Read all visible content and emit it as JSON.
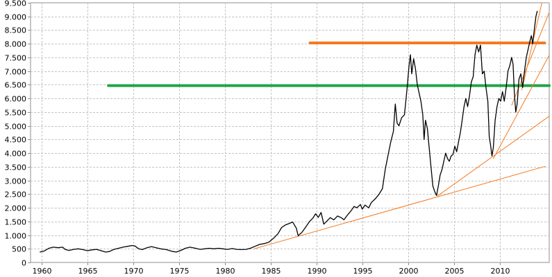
{
  "chart_data": {
    "type": "line",
    "title": "",
    "xlabel": "",
    "ylabel": "",
    "xlim": [
      1958.8,
      2015.4
    ],
    "ylim": [
      0,
      9500
    ],
    "x_ticks": [
      1960,
      1965,
      1970,
      1975,
      1980,
      1985,
      1990,
      1995,
      2000,
      2005,
      2010
    ],
    "x_tick_labels": [
      "1960",
      "1965",
      "1970",
      "1975",
      "1980",
      "1985",
      "1990",
      "1995",
      "2000",
      "2005",
      "2010"
    ],
    "y_ticks": [
      0,
      500,
      1000,
      1500,
      2000,
      2500,
      3000,
      3500,
      4000,
      4500,
      5000,
      5500,
      6000,
      6500,
      7000,
      7500,
      8000,
      8500,
      9000,
      9500
    ],
    "y_tick_labels": [
      "0",
      "500",
      "1.000",
      "1.500",
      "2.000",
      "2.500",
      "3.000",
      "3.500",
      "4.000",
      "4.500",
      "5.000",
      "5.500",
      "6.000",
      "6.500",
      "7.000",
      "7.500",
      "8.000",
      "8.500",
      "9.000",
      "9.500"
    ],
    "grid": true,
    "legend": "none",
    "colors": {
      "price": "#000000",
      "resistance_upper": "#f47a20",
      "resistance_lower": "#21a448",
      "trendlines": "#f47a20",
      "grid": "#c4c4c4",
      "frame": "#8e8e8e"
    },
    "series": [
      {
        "values": [
          [
            1959.8,
            380
          ],
          [
            1960.3,
            420
          ],
          [
            1960.8,
            520
          ],
          [
            1961.3,
            560
          ],
          [
            1961.8,
            540
          ],
          [
            1962.3,
            560
          ],
          [
            1962.6,
            470
          ],
          [
            1963.0,
            440
          ],
          [
            1963.5,
            480
          ],
          [
            1964.0,
            500
          ],
          [
            1964.5,
            470
          ],
          [
            1965.0,
            430
          ],
          [
            1965.5,
            460
          ],
          [
            1966.0,
            480
          ],
          [
            1966.5,
            430
          ],
          [
            1967.0,
            380
          ],
          [
            1967.4,
            400
          ],
          [
            1967.9,
            480
          ],
          [
            1968.4,
            520
          ],
          [
            1968.9,
            560
          ],
          [
            1969.4,
            590
          ],
          [
            1969.9,
            620
          ],
          [
            1970.2,
            600
          ],
          [
            1970.6,
            500
          ],
          [
            1971.0,
            470
          ],
          [
            1971.5,
            540
          ],
          [
            1972.0,
            580
          ],
          [
            1972.5,
            540
          ],
          [
            1973.0,
            500
          ],
          [
            1973.6,
            470
          ],
          [
            1974.2,
            410
          ],
          [
            1974.7,
            380
          ],
          [
            1975.2,
            440
          ],
          [
            1975.7,
            520
          ],
          [
            1976.2,
            560
          ],
          [
            1976.8,
            520
          ],
          [
            1977.3,
            480
          ],
          [
            1977.8,
            500
          ],
          [
            1978.3,
            520
          ],
          [
            1978.8,
            500
          ],
          [
            1979.3,
            520
          ],
          [
            1979.8,
            500
          ],
          [
            1980.3,
            480
          ],
          [
            1980.8,
            510
          ],
          [
            1981.3,
            480
          ],
          [
            1981.8,
            470
          ],
          [
            1982.3,
            480
          ],
          [
            1982.8,
            520
          ],
          [
            1983.3,
            590
          ],
          [
            1983.8,
            660
          ],
          [
            1984.3,
            690
          ],
          [
            1984.8,
            740
          ],
          [
            1985.3,
            880
          ],
          [
            1985.8,
            1050
          ],
          [
            1986.2,
            1280
          ],
          [
            1986.6,
            1370
          ],
          [
            1987.0,
            1420
          ],
          [
            1987.4,
            1480
          ],
          [
            1987.8,
            1260
          ],
          [
            1988.0,
            980
          ],
          [
            1988.4,
            1100
          ],
          [
            1988.8,
            1280
          ],
          [
            1989.2,
            1480
          ],
          [
            1989.6,
            1620
          ],
          [
            1989.9,
            1780
          ],
          [
            1990.2,
            1650
          ],
          [
            1990.5,
            1830
          ],
          [
            1990.8,
            1400
          ],
          [
            1991.1,
            1500
          ],
          [
            1991.5,
            1640
          ],
          [
            1991.9,
            1560
          ],
          [
            1992.3,
            1700
          ],
          [
            1992.7,
            1640
          ],
          [
            1993.0,
            1560
          ],
          [
            1993.4,
            1740
          ],
          [
            1993.8,
            1900
          ],
          [
            1994.1,
            2050
          ],
          [
            1994.4,
            2000
          ],
          [
            1994.8,
            2120
          ],
          [
            1995.0,
            1950
          ],
          [
            1995.3,
            2100
          ],
          [
            1995.7,
            2000
          ],
          [
            1996.0,
            2200
          ],
          [
            1996.4,
            2320
          ],
          [
            1996.8,
            2480
          ],
          [
            1997.2,
            2700
          ],
          [
            1997.5,
            3400
          ],
          [
            1997.8,
            3900
          ],
          [
            1998.1,
            4400
          ],
          [
            1998.4,
            4800
          ],
          [
            1998.6,
            5800
          ],
          [
            1998.8,
            5100
          ],
          [
            1999.0,
            5000
          ],
          [
            1999.3,
            5300
          ],
          [
            1999.6,
            5400
          ],
          [
            1999.9,
            6400
          ],
          [
            2000.1,
            7200
          ],
          [
            2000.25,
            7600
          ],
          [
            2000.4,
            6900
          ],
          [
            2000.6,
            7450
          ],
          [
            2000.8,
            7100
          ],
          [
            2001.0,
            6500
          ],
          [
            2001.2,
            6200
          ],
          [
            2001.4,
            5900
          ],
          [
            2001.6,
            5400
          ],
          [
            2001.75,
            4500
          ],
          [
            2001.9,
            5200
          ],
          [
            2002.1,
            4900
          ],
          [
            2002.3,
            4200
          ],
          [
            2002.5,
            3500
          ],
          [
            2002.7,
            2800
          ],
          [
            2002.9,
            2600
          ],
          [
            2003.1,
            2450
          ],
          [
            2003.3,
            2800
          ],
          [
            2003.5,
            3200
          ],
          [
            2003.7,
            3400
          ],
          [
            2003.9,
            3700
          ],
          [
            2004.1,
            4000
          ],
          [
            2004.3,
            3800
          ],
          [
            2004.5,
            3700
          ],
          [
            2004.7,
            3900
          ],
          [
            2004.9,
            3950
          ],
          [
            2005.1,
            4250
          ],
          [
            2005.3,
            4050
          ],
          [
            2005.5,
            4400
          ],
          [
            2005.7,
            4750
          ],
          [
            2005.9,
            5200
          ],
          [
            2006.1,
            5700
          ],
          [
            2006.3,
            6000
          ],
          [
            2006.5,
            5700
          ],
          [
            2006.7,
            6100
          ],
          [
            2006.9,
            6600
          ],
          [
            2007.1,
            6800
          ],
          [
            2007.3,
            7600
          ],
          [
            2007.5,
            7950
          ],
          [
            2007.7,
            7700
          ],
          [
            2007.9,
            7950
          ],
          [
            2008.1,
            6900
          ],
          [
            2008.3,
            7000
          ],
          [
            2008.5,
            6400
          ],
          [
            2008.7,
            5900
          ],
          [
            2008.85,
            4600
          ],
          [
            2009.0,
            4300
          ],
          [
            2009.15,
            3900
          ],
          [
            2009.3,
            4200
          ],
          [
            2009.5,
            5200
          ],
          [
            2009.7,
            5700
          ],
          [
            2009.9,
            6000
          ],
          [
            2010.1,
            5900
          ],
          [
            2010.3,
            6250
          ],
          [
            2010.5,
            5900
          ],
          [
            2010.7,
            6400
          ],
          [
            2010.9,
            7000
          ],
          [
            2011.1,
            7200
          ],
          [
            2011.3,
            7500
          ],
          [
            2011.45,
            7250
          ],
          [
            2011.6,
            6200
          ],
          [
            2011.75,
            5500
          ],
          [
            2011.9,
            5800
          ],
          [
            2012.1,
            6700
          ],
          [
            2012.3,
            6900
          ],
          [
            2012.5,
            6400
          ],
          [
            2012.7,
            7000
          ],
          [
            2012.9,
            7500
          ],
          [
            2013.1,
            7800
          ],
          [
            2013.3,
            8100
          ],
          [
            2013.45,
            8300
          ],
          [
            2013.6,
            8000
          ],
          [
            2013.8,
            8600
          ],
          [
            2013.95,
            9000
          ],
          [
            2014.1,
            9200
          ]
        ]
      }
    ],
    "annotations": [
      {
        "type": "hline",
        "y": 8030,
        "x_from": 1989.3,
        "x_to": 2014.9,
        "color": "#f47a20"
      },
      {
        "type": "hline",
        "y": 6470,
        "x_from": 1967.3,
        "x_to": 2015.4,
        "color": "#21a448"
      },
      {
        "type": "trendline",
        "from": [
          1983.2,
          500
        ],
        "to": [
          2015.0,
          3520
        ],
        "color": "#f47a20"
      },
      {
        "type": "trendline",
        "from": [
          2003.2,
          2430
        ],
        "to": [
          2015.4,
          5350
        ],
        "color": "#f47a20"
      },
      {
        "type": "trendline",
        "from": [
          2009.3,
          3800
        ],
        "to": [
          2015.4,
          7580
        ],
        "color": "#f47a20"
      },
      {
        "type": "trendline",
        "from": [
          2011.3,
          5750
        ],
        "to": [
          2015.4,
          9150
        ],
        "color": "#f47a20"
      },
      {
        "type": "trendline",
        "from": [
          2012.4,
          6300
        ],
        "to": [
          2014.6,
          9500
        ],
        "color": "#f47a20"
      }
    ]
  }
}
